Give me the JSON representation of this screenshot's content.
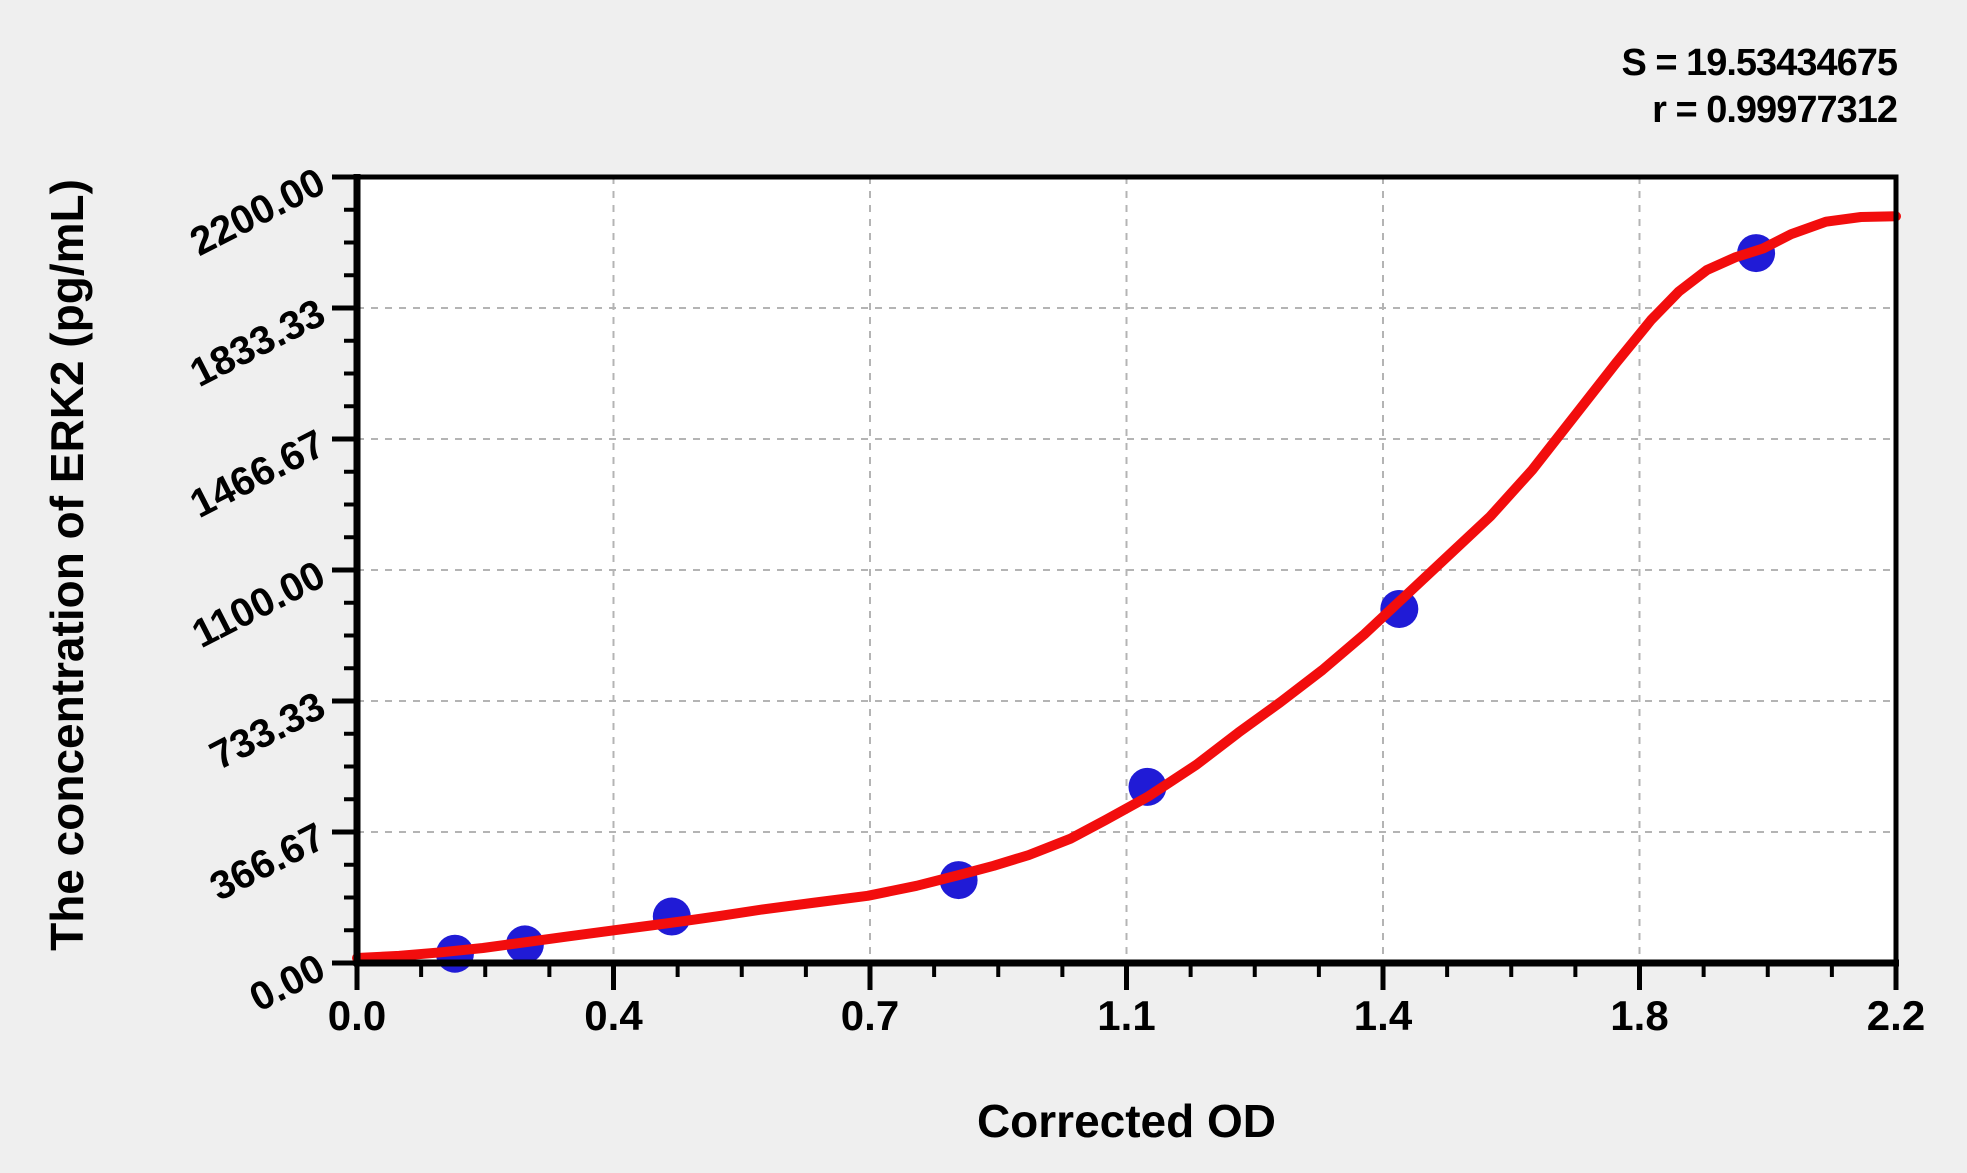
{
  "annotations": {
    "s_label": "S = 19.53434675",
    "r_label": "r = 0.99977312"
  },
  "chart_data": {
    "type": "scatter",
    "title": "",
    "xlabel": "Corrected OD",
    "ylabel": "The concentration of ERK2 (pg/mL)",
    "xlim": [
      0,
      2.2
    ],
    "ylim": [
      0,
      2200
    ],
    "x_tick_labels": [
      "0.0",
      "0.4",
      "0.7",
      "1.1",
      "1.4",
      "1.8",
      "2.2"
    ],
    "y_tick_labels": [
      "0.00",
      "366.67",
      "733.33",
      "1100.00",
      "1466.67",
      "1833.33",
      "2200.00"
    ],
    "minor_ticks_per_interval": 3,
    "grid": "dashed gridlines at major ticks, plot area white, framed black",
    "legend_position": "none",
    "stats": {
      "S": "19.53434675",
      "r": "0.99977312"
    },
    "series": [
      {
        "name": "standard points",
        "type": "scatter",
        "color": "#201bd6",
        "points": [
          {
            "od": 0.14,
            "conc": 26
          },
          {
            "od": 0.24,
            "conc": 52
          },
          {
            "od": 0.45,
            "conc": 130
          },
          {
            "od": 0.86,
            "conc": 232
          },
          {
            "od": 1.13,
            "conc": 493
          },
          {
            "od": 1.49,
            "conc": 991
          },
          {
            "od": 2.0,
            "conc": 1987
          }
        ]
      },
      {
        "name": "fitted standard curve",
        "type": "line",
        "color": "#f20d0d",
        "x": [
          0.0,
          0.06,
          0.12,
          0.18,
          0.24,
          0.3,
          0.37,
          0.42,
          0.47,
          0.52,
          0.58,
          0.65,
          0.73,
          0.8,
          0.86,
          0.91,
          0.96,
          1.02,
          1.07,
          1.13,
          1.2,
          1.26,
          1.32,
          1.38,
          1.44,
          1.5,
          1.56,
          1.62,
          1.68,
          1.74,
          1.8,
          1.85,
          1.89,
          1.93,
          1.97,
          2.01,
          2.05,
          2.1,
          2.15,
          2.2
        ],
        "y": [
          14,
          20,
          30,
          42,
          58,
          74,
          92,
          105,
          118,
          132,
          150,
          168,
          188,
          216,
          246,
          272,
          302,
          348,
          400,
          465,
          555,
          645,
          730,
          820,
          920,
          1030,
          1140,
          1250,
          1380,
          1530,
          1680,
          1800,
          1880,
          1940,
          1975,
          2000,
          2040,
          2075,
          2088,
          2090
        ]
      }
    ]
  },
  "colors": {
    "background": "#efefef",
    "plot_background": "#ffffff",
    "gridline": "#b4b4b4",
    "axis": "#000000",
    "curve": "#f20d0d",
    "point": "#201bd6",
    "text": "#000000"
  }
}
